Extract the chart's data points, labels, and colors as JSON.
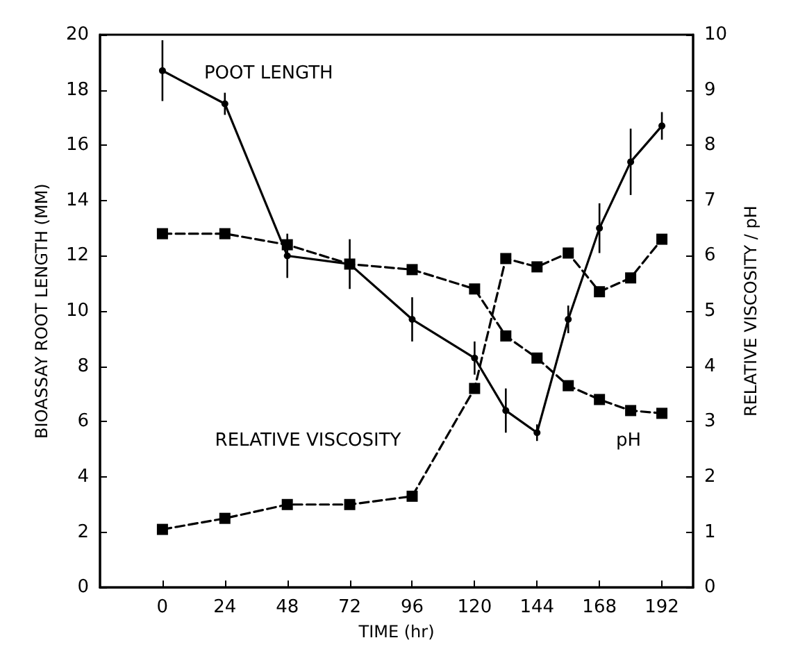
{
  "chart_data": {
    "type": "line",
    "xlabel": "TIME (hr)",
    "ylabel": "BIOASSAY ROOT LENGTH (MM)",
    "y2label": "RELATIVE VISCOSITY / pH",
    "x": [
      0,
      24,
      48,
      72,
      96,
      120,
      132,
      144,
      156,
      168,
      180,
      192
    ],
    "xlim": [
      -24,
      204
    ],
    "xticks": [
      0,
      24,
      48,
      72,
      96,
      120,
      144,
      168,
      192
    ],
    "ylim": [
      0,
      20
    ],
    "yticks": [
      0,
      2,
      4,
      6,
      8,
      10,
      12,
      14,
      16,
      18,
      20
    ],
    "y2lim": [
      0,
      10
    ],
    "y2ticks": [
      0,
      1,
      2,
      3,
      4,
      5,
      6,
      7,
      8,
      9,
      10
    ],
    "grid": false,
    "legend": false,
    "series": [
      {
        "name": "POOT LENGTH",
        "color": "#000000",
        "marker": "circle",
        "line_style": "solid",
        "values": [
          18.7,
          17.5,
          12.0,
          11.7,
          9.7,
          8.3,
          6.4,
          5.6,
          9.7,
          13.0,
          15.4,
          16.7
        ],
        "errors": [
          1.1,
          0.4,
          0.8,
          0.9,
          0.8,
          0.6,
          0.8,
          0.3,
          0.5,
          0.9,
          1.2,
          0.5
        ]
      },
      {
        "name": "RELATIVE VISCOSITY",
        "color": "#000000",
        "marker": "square",
        "line_style": "dashed",
        "axis": "y2",
        "values": [
          1.05,
          1.25,
          1.5,
          1.5,
          1.65,
          3.6,
          5.95,
          5.8,
          6.05,
          5.35,
          5.6,
          6.3
        ]
      },
      {
        "name": "pH",
        "color": "#000000",
        "marker": "square",
        "line_style": "dashed",
        "axis": "y2",
        "values": [
          6.4,
          6.4,
          6.2,
          5.85,
          5.75,
          5.4,
          4.55,
          4.15,
          3.65,
          3.4,
          3.2,
          3.15
        ]
      }
    ]
  }
}
